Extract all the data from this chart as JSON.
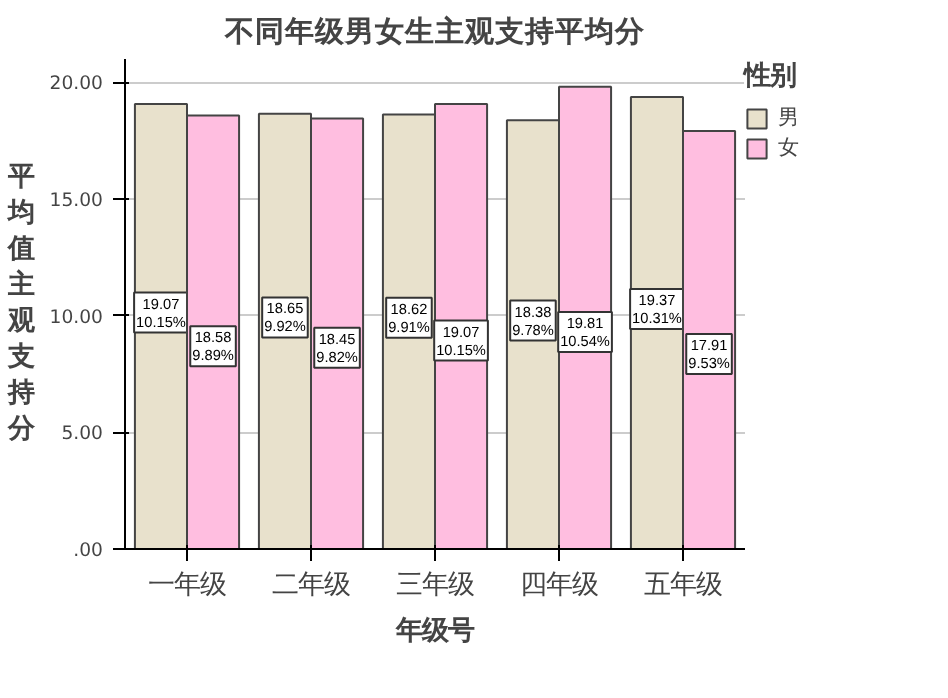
{
  "chart_data": {
    "type": "bar",
    "title": "不同年级男女生主观支持平均分",
    "xlabel": "年级号",
    "ylabel": "平均值主观支持分",
    "legend_title": "性别",
    "categories": [
      "一年级",
      "二年级",
      "三年级",
      "四年级",
      "五年级"
    ],
    "series": [
      {
        "name": "男",
        "color": "#e8e1cc",
        "values": [
          19.07,
          18.65,
          18.62,
          18.38,
          19.37
        ],
        "value_labels": [
          "19.07\n10.15%",
          "18.65\n9.92%",
          "18.62\n9.91%",
          "18.38\n9.78%",
          "19.37\n10.31%"
        ]
      },
      {
        "name": "女",
        "color": "#ffbee0",
        "values": [
          18.58,
          18.45,
          19.07,
          19.81,
          17.91
        ],
        "value_labels": [
          "18.58\n9.89%",
          "18.45\n9.82%",
          "19.07\n10.15%",
          "19.81\n10.54%",
          "17.91\n9.53%"
        ]
      }
    ],
    "ylim": [
      0,
      21
    ],
    "yticks": [
      {
        "value": 0,
        "label": ".00"
      },
      {
        "value": 5,
        "label": "5.00"
      },
      {
        "value": 10,
        "label": "10.00"
      },
      {
        "value": 15,
        "label": "15.00"
      },
      {
        "value": 20,
        "label": "20.00"
      }
    ],
    "grid": "y",
    "legend": "top right"
  }
}
